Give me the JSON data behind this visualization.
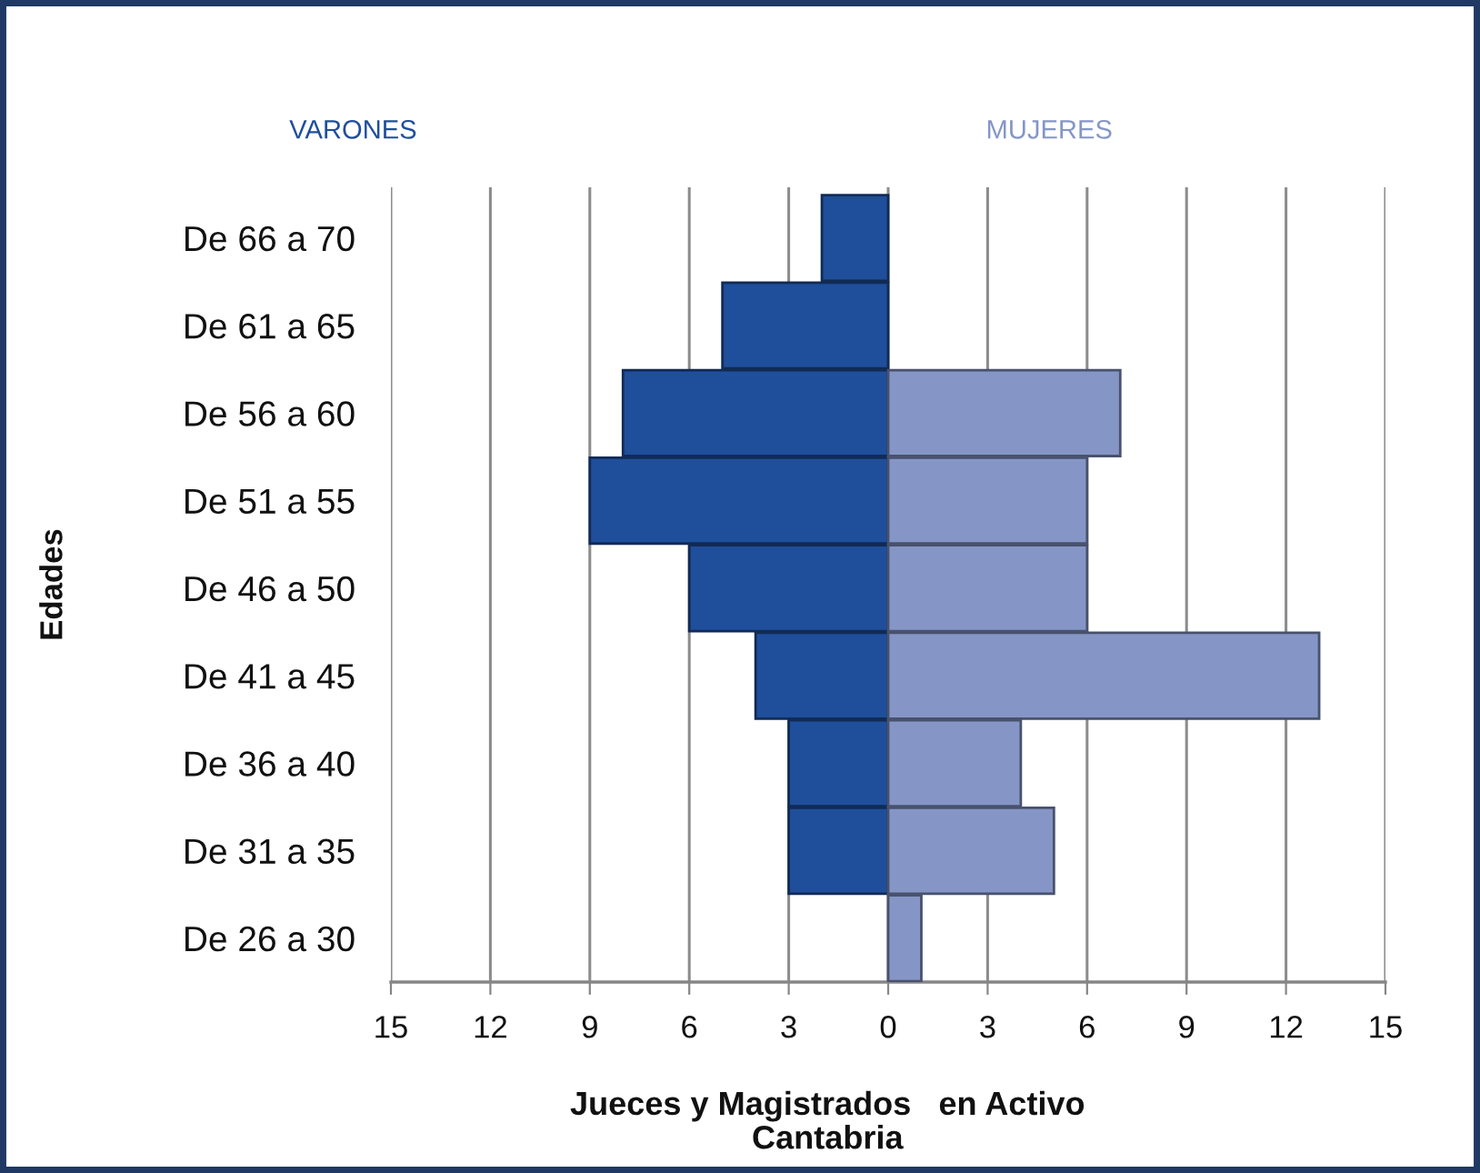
{
  "chart_data": {
    "type": "bar",
    "orientation": "horizontal",
    "stacked": true,
    "legend": false,
    "grid": "x",
    "xlabel": "Jueces y Magistrados   en Activo",
    "ylabel": "Edades",
    "annotations": [
      "Cantabria"
    ],
    "categories": [
      "De 66 a 70",
      "De 61 a 65",
      "De 56 a 60",
      "De 51 a 55",
      "De 46 a 50",
      "De 41 a 45",
      "De 36 a 40",
      "De 31 a 35",
      "De 26 a 30"
    ],
    "series": [
      {
        "name": "VARONES",
        "color": "#1f4e9b",
        "values": [
          -2,
          -5,
          -8,
          -9,
          -6,
          -4,
          -3,
          -3,
          null
        ]
      },
      {
        "name": "MUJERES",
        "color": "#8596c6",
        "values": [
          null,
          null,
          7,
          6,
          6,
          13,
          4,
          5,
          1
        ]
      }
    ],
    "xlim": [
      -15,
      15
    ],
    "xticks": [
      {
        "value": -15,
        "label": "15"
      },
      {
        "value": -12,
        "label": "12"
      },
      {
        "value": -9,
        "label": "9"
      },
      {
        "value": -6,
        "label": "6"
      },
      {
        "value": -3,
        "label": "3"
      },
      0,
      3,
      6,
      9,
      12,
      15
    ]
  }
}
